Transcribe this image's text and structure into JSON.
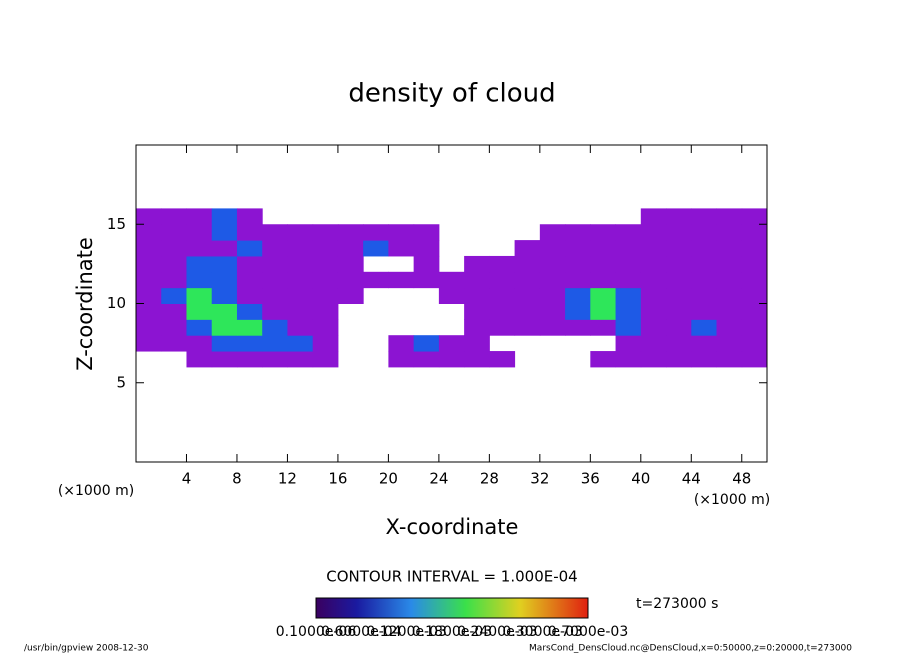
{
  "chart_data": {
    "type": "contour",
    "title": "density of cloud",
    "xlabel": "X-coordinate",
    "ylabel": "Z-coordinate",
    "x_unit": "(×1000 m)",
    "y_unit": "(×1000 m)",
    "xlim": [
      0,
      50
    ],
    "ylim": [
      0,
      20
    ],
    "xticks": [
      4,
      8,
      12,
      16,
      20,
      24,
      28,
      32,
      36,
      40,
      44,
      48
    ],
    "yticks": [
      5,
      10,
      15
    ],
    "x": [
      0,
      2,
      4,
      6,
      8,
      10,
      12,
      14,
      16,
      18,
      20,
      22,
      24,
      26,
      28,
      30,
      32,
      34,
      36,
      38,
      40,
      42,
      44,
      46,
      48,
      50
    ],
    "z": [
      6,
      7,
      8,
      9,
      10,
      11,
      12,
      13,
      14,
      15,
      16
    ],
    "levels": [
      0.0001,
      0.0003
    ],
    "palette": [
      "#8c14d2",
      "#1e5ae6",
      "#2ee65a"
    ],
    "values": [
      [
        0,
        0,
        5e-05,
        5e-05,
        5e-05,
        5e-05,
        5e-05,
        5e-05,
        0,
        0,
        5e-05,
        5e-05,
        5e-05,
        5e-05,
        5e-05,
        0,
        0,
        0,
        5e-05,
        5e-05,
        5e-05,
        5e-05,
        5e-05,
        5e-05,
        5e-05
      ],
      [
        5e-05,
        5e-05,
        5e-05,
        0.00015,
        0.00015,
        0.00015,
        0.00015,
        5e-05,
        0,
        0,
        5e-05,
        0.00015,
        5e-05,
        5e-05,
        0,
        0,
        0,
        0,
        0,
        5e-05,
        5e-05,
        5e-05,
        5e-05,
        5e-05,
        5e-05
      ],
      [
        5e-05,
        5e-05,
        0.00015,
        0.00035,
        0.00035,
        0.00015,
        5e-05,
        5e-05,
        0,
        0,
        0,
        0,
        0,
        5e-05,
        5e-05,
        5e-05,
        5e-05,
        5e-05,
        5e-05,
        0.00015,
        5e-05,
        5e-05,
        0.00015,
        5e-05,
        5e-05
      ],
      [
        5e-05,
        5e-05,
        0.00035,
        0.00035,
        0.00015,
        5e-05,
        5e-05,
        5e-05,
        0,
        0,
        0,
        0,
        0,
        5e-05,
        5e-05,
        5e-05,
        5e-05,
        0.00015,
        0.00035,
        0.00015,
        5e-05,
        5e-05,
        5e-05,
        5e-05,
        5e-05
      ],
      [
        5e-05,
        0.00015,
        0.00035,
        0.00015,
        5e-05,
        5e-05,
        5e-05,
        5e-05,
        5e-05,
        0,
        0,
        0,
        5e-05,
        5e-05,
        5e-05,
        5e-05,
        5e-05,
        0.00015,
        0.00035,
        0.00015,
        5e-05,
        5e-05,
        5e-05,
        5e-05,
        5e-05
      ],
      [
        5e-05,
        5e-05,
        0.00015,
        0.00015,
        5e-05,
        5e-05,
        5e-05,
        5e-05,
        5e-05,
        5e-05,
        5e-05,
        5e-05,
        5e-05,
        5e-05,
        5e-05,
        5e-05,
        5e-05,
        5e-05,
        5e-05,
        5e-05,
        5e-05,
        5e-05,
        5e-05,
        5e-05,
        5e-05
      ],
      [
        5e-05,
        5e-05,
        0.00015,
        0.00015,
        5e-05,
        5e-05,
        5e-05,
        5e-05,
        5e-05,
        0,
        0,
        5e-05,
        0,
        5e-05,
        5e-05,
        5e-05,
        5e-05,
        5e-05,
        5e-05,
        5e-05,
        5e-05,
        5e-05,
        5e-05,
        5e-05,
        5e-05
      ],
      [
        5e-05,
        5e-05,
        5e-05,
        5e-05,
        0.00015,
        5e-05,
        5e-05,
        5e-05,
        5e-05,
        0.00015,
        5e-05,
        5e-05,
        0,
        0,
        0,
        5e-05,
        5e-05,
        5e-05,
        5e-05,
        5e-05,
        5e-05,
        5e-05,
        5e-05,
        5e-05,
        5e-05
      ],
      [
        5e-05,
        5e-05,
        5e-05,
        0.00015,
        5e-05,
        5e-05,
        5e-05,
        5e-05,
        5e-05,
        5e-05,
        5e-05,
        5e-05,
        0,
        0,
        0,
        0,
        5e-05,
        5e-05,
        5e-05,
        5e-05,
        5e-05,
        5e-05,
        5e-05,
        5e-05,
        5e-05
      ],
      [
        5e-05,
        5e-05,
        5e-05,
        0.00015,
        5e-05,
        0,
        0,
        0,
        0,
        0,
        0,
        0,
        0,
        0,
        0,
        0,
        0,
        0,
        0,
        0,
        5e-05,
        5e-05,
        5e-05,
        5e-05,
        5e-05
      ]
    ],
    "contour_interval": "CONTOUR INTERVAL = 1.000E-04",
    "time_label": "t=273000 s",
    "colorbar_labels": [
      "0.1000e-06",
      "0.6000e-04",
      "0.1200e-03",
      "0.1800e-03",
      "0.2400e-03",
      "0.3000e-03",
      "0.7000e-03"
    ],
    "footer_left": "/usr/bin/gpview   2008-12-30",
    "footer_right": "MarsCond_DensCloud.nc@DensCloud,x=0:50000,z=0:20000,t=273000"
  }
}
